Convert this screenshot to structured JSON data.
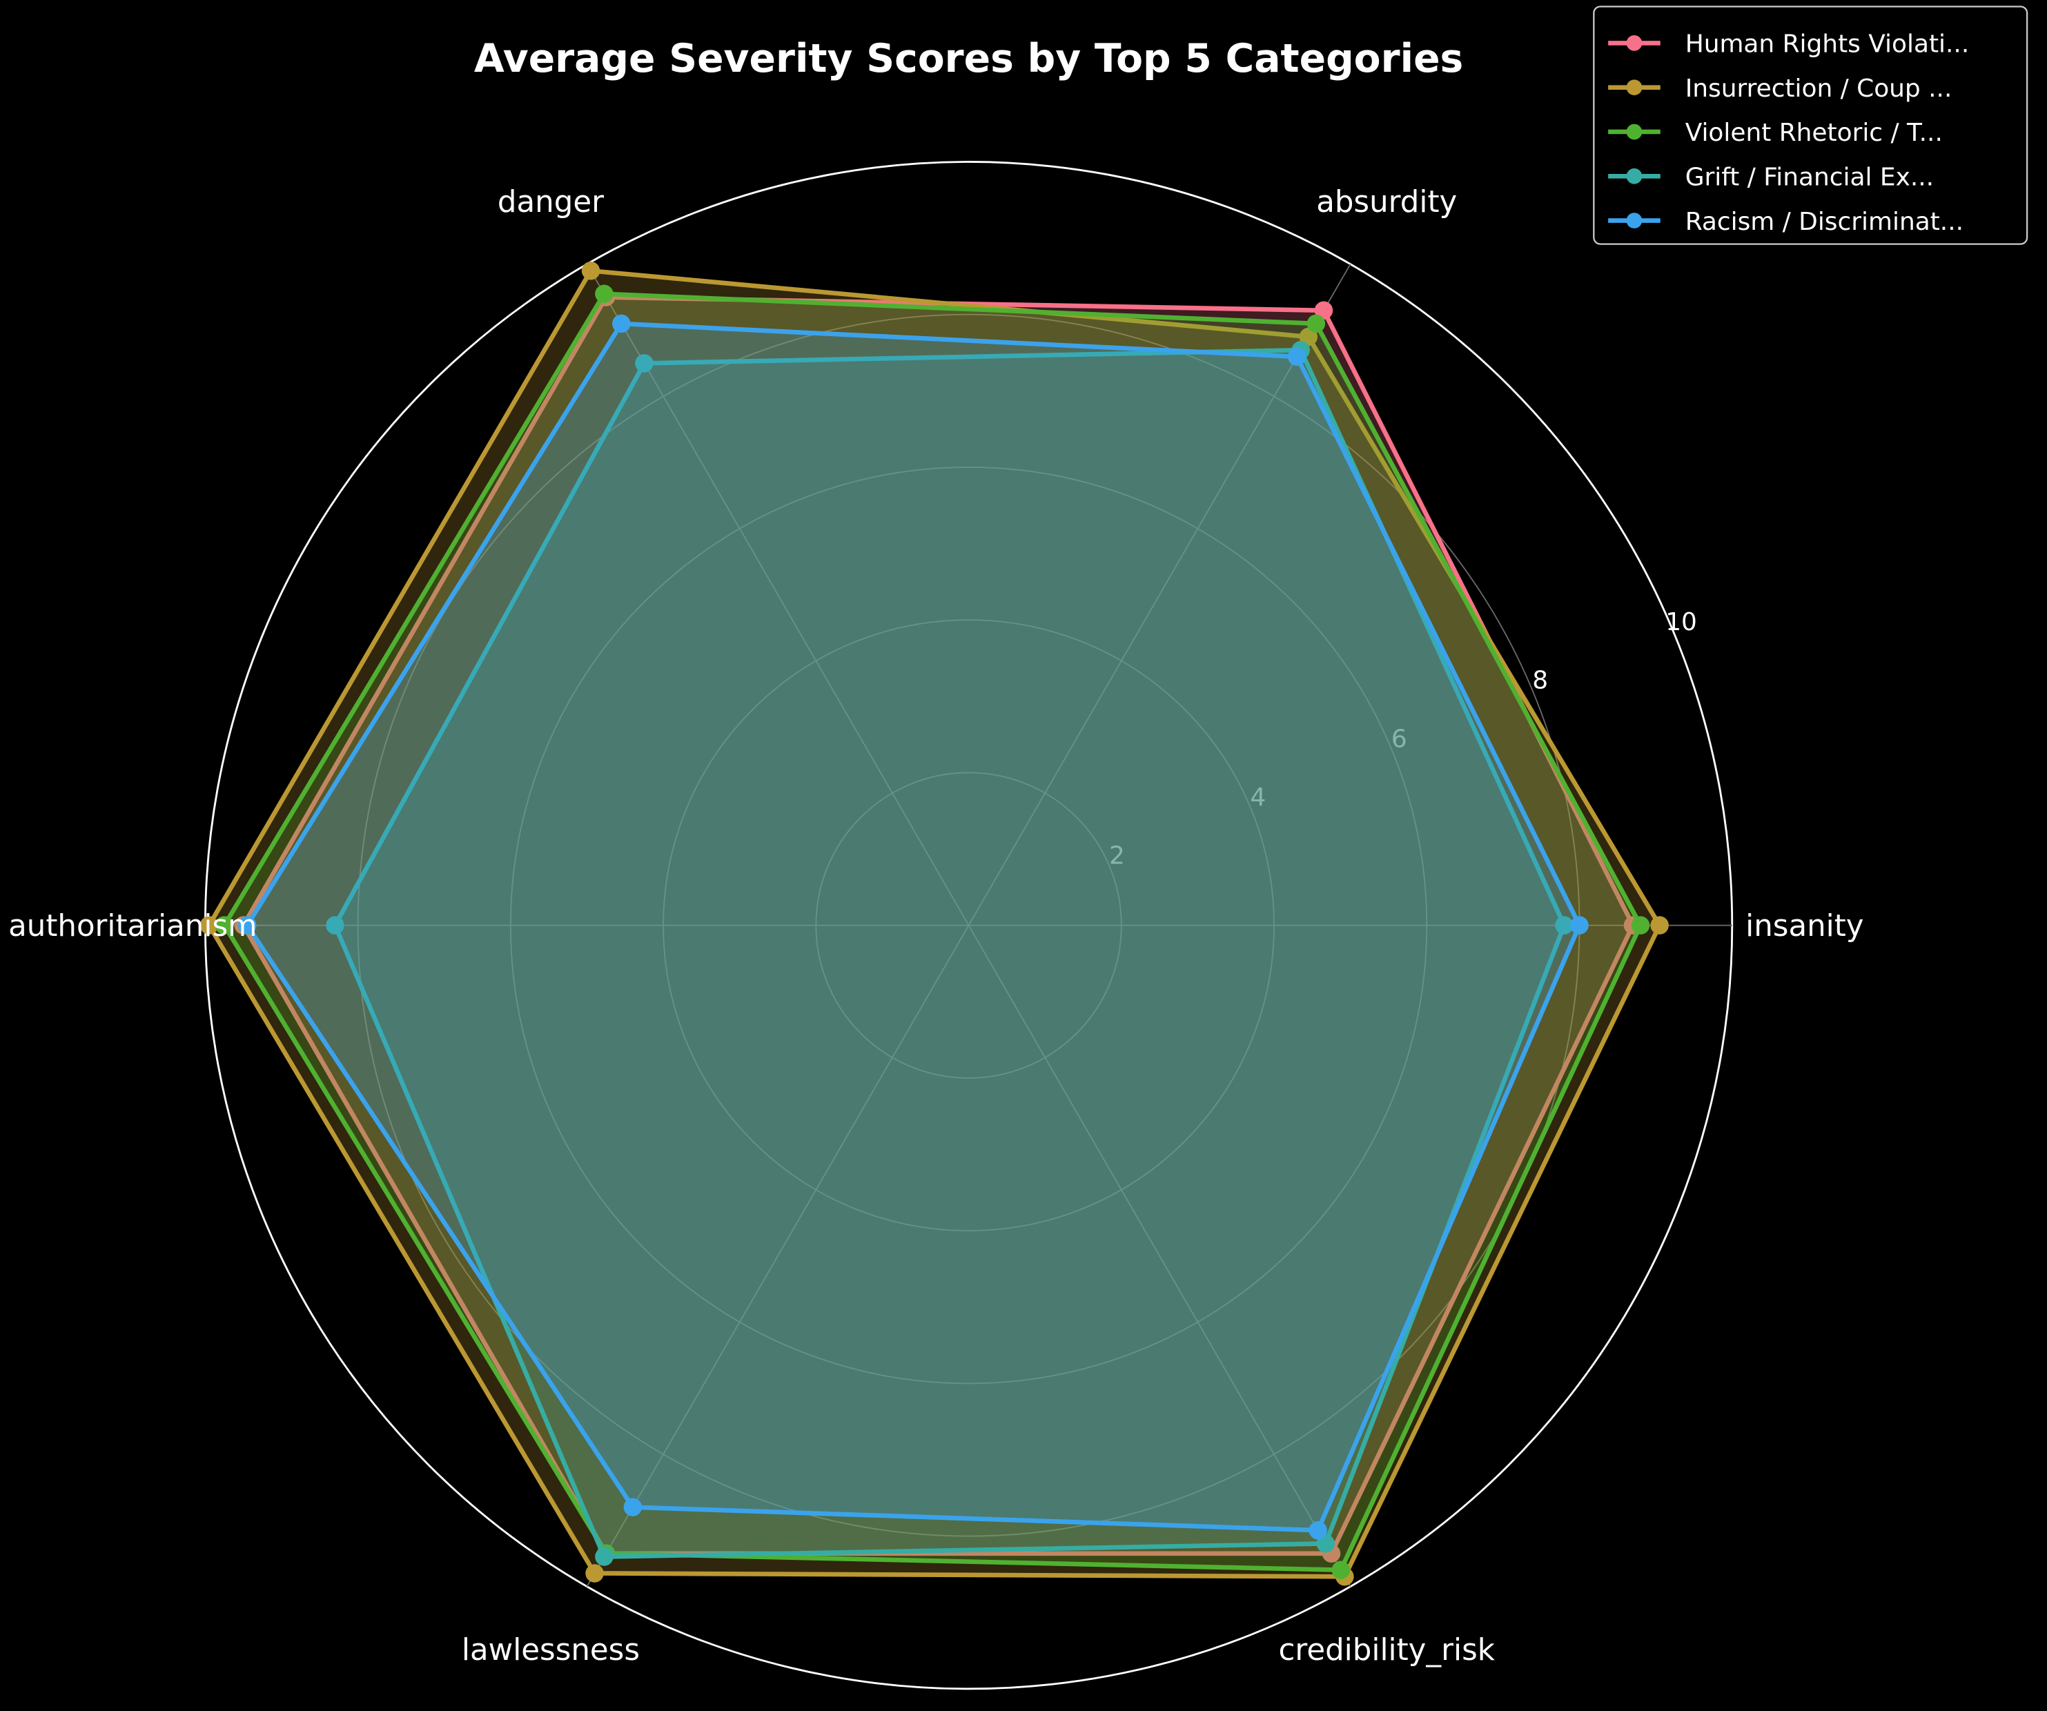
{
  "chart_data": {
    "type": "radar",
    "title": "Average Severity Scores by Top 5 Categories",
    "axes": [
      "insanity",
      "absurdity",
      "danger",
      "authoritarianism",
      "lawlessness",
      "credibility_risk"
    ],
    "rlim": [
      0,
      10
    ],
    "rticks": [
      2,
      4,
      6,
      8,
      10
    ],
    "grid": true,
    "legend_position": "top-right",
    "series": [
      {
        "name": "Human Rights Violati...",
        "color": "#f77189",
        "values": [
          8.7,
          9.3,
          9.5,
          9.5,
          9.5,
          9.5
        ]
      },
      {
        "name": "Insurrection / Coup ...",
        "color": "#bb9832",
        "values": [
          9.05,
          8.9,
          9.9,
          9.95,
          9.8,
          9.85
        ]
      },
      {
        "name": "Violent Rhetoric / T...",
        "color": "#50b131",
        "values": [
          8.8,
          9.1,
          9.55,
          9.75,
          9.5,
          9.75
        ]
      },
      {
        "name": "Grift / Financial Ex...",
        "color": "#36ada4",
        "values": [
          7.8,
          8.7,
          8.5,
          8.3,
          9.55,
          9.35
        ]
      },
      {
        "name": "Racism / Discriminat...",
        "color": "#3ba3ec",
        "values": [
          8.0,
          8.6,
          9.1,
          9.45,
          8.8,
          9.15
        ]
      }
    ]
  }
}
